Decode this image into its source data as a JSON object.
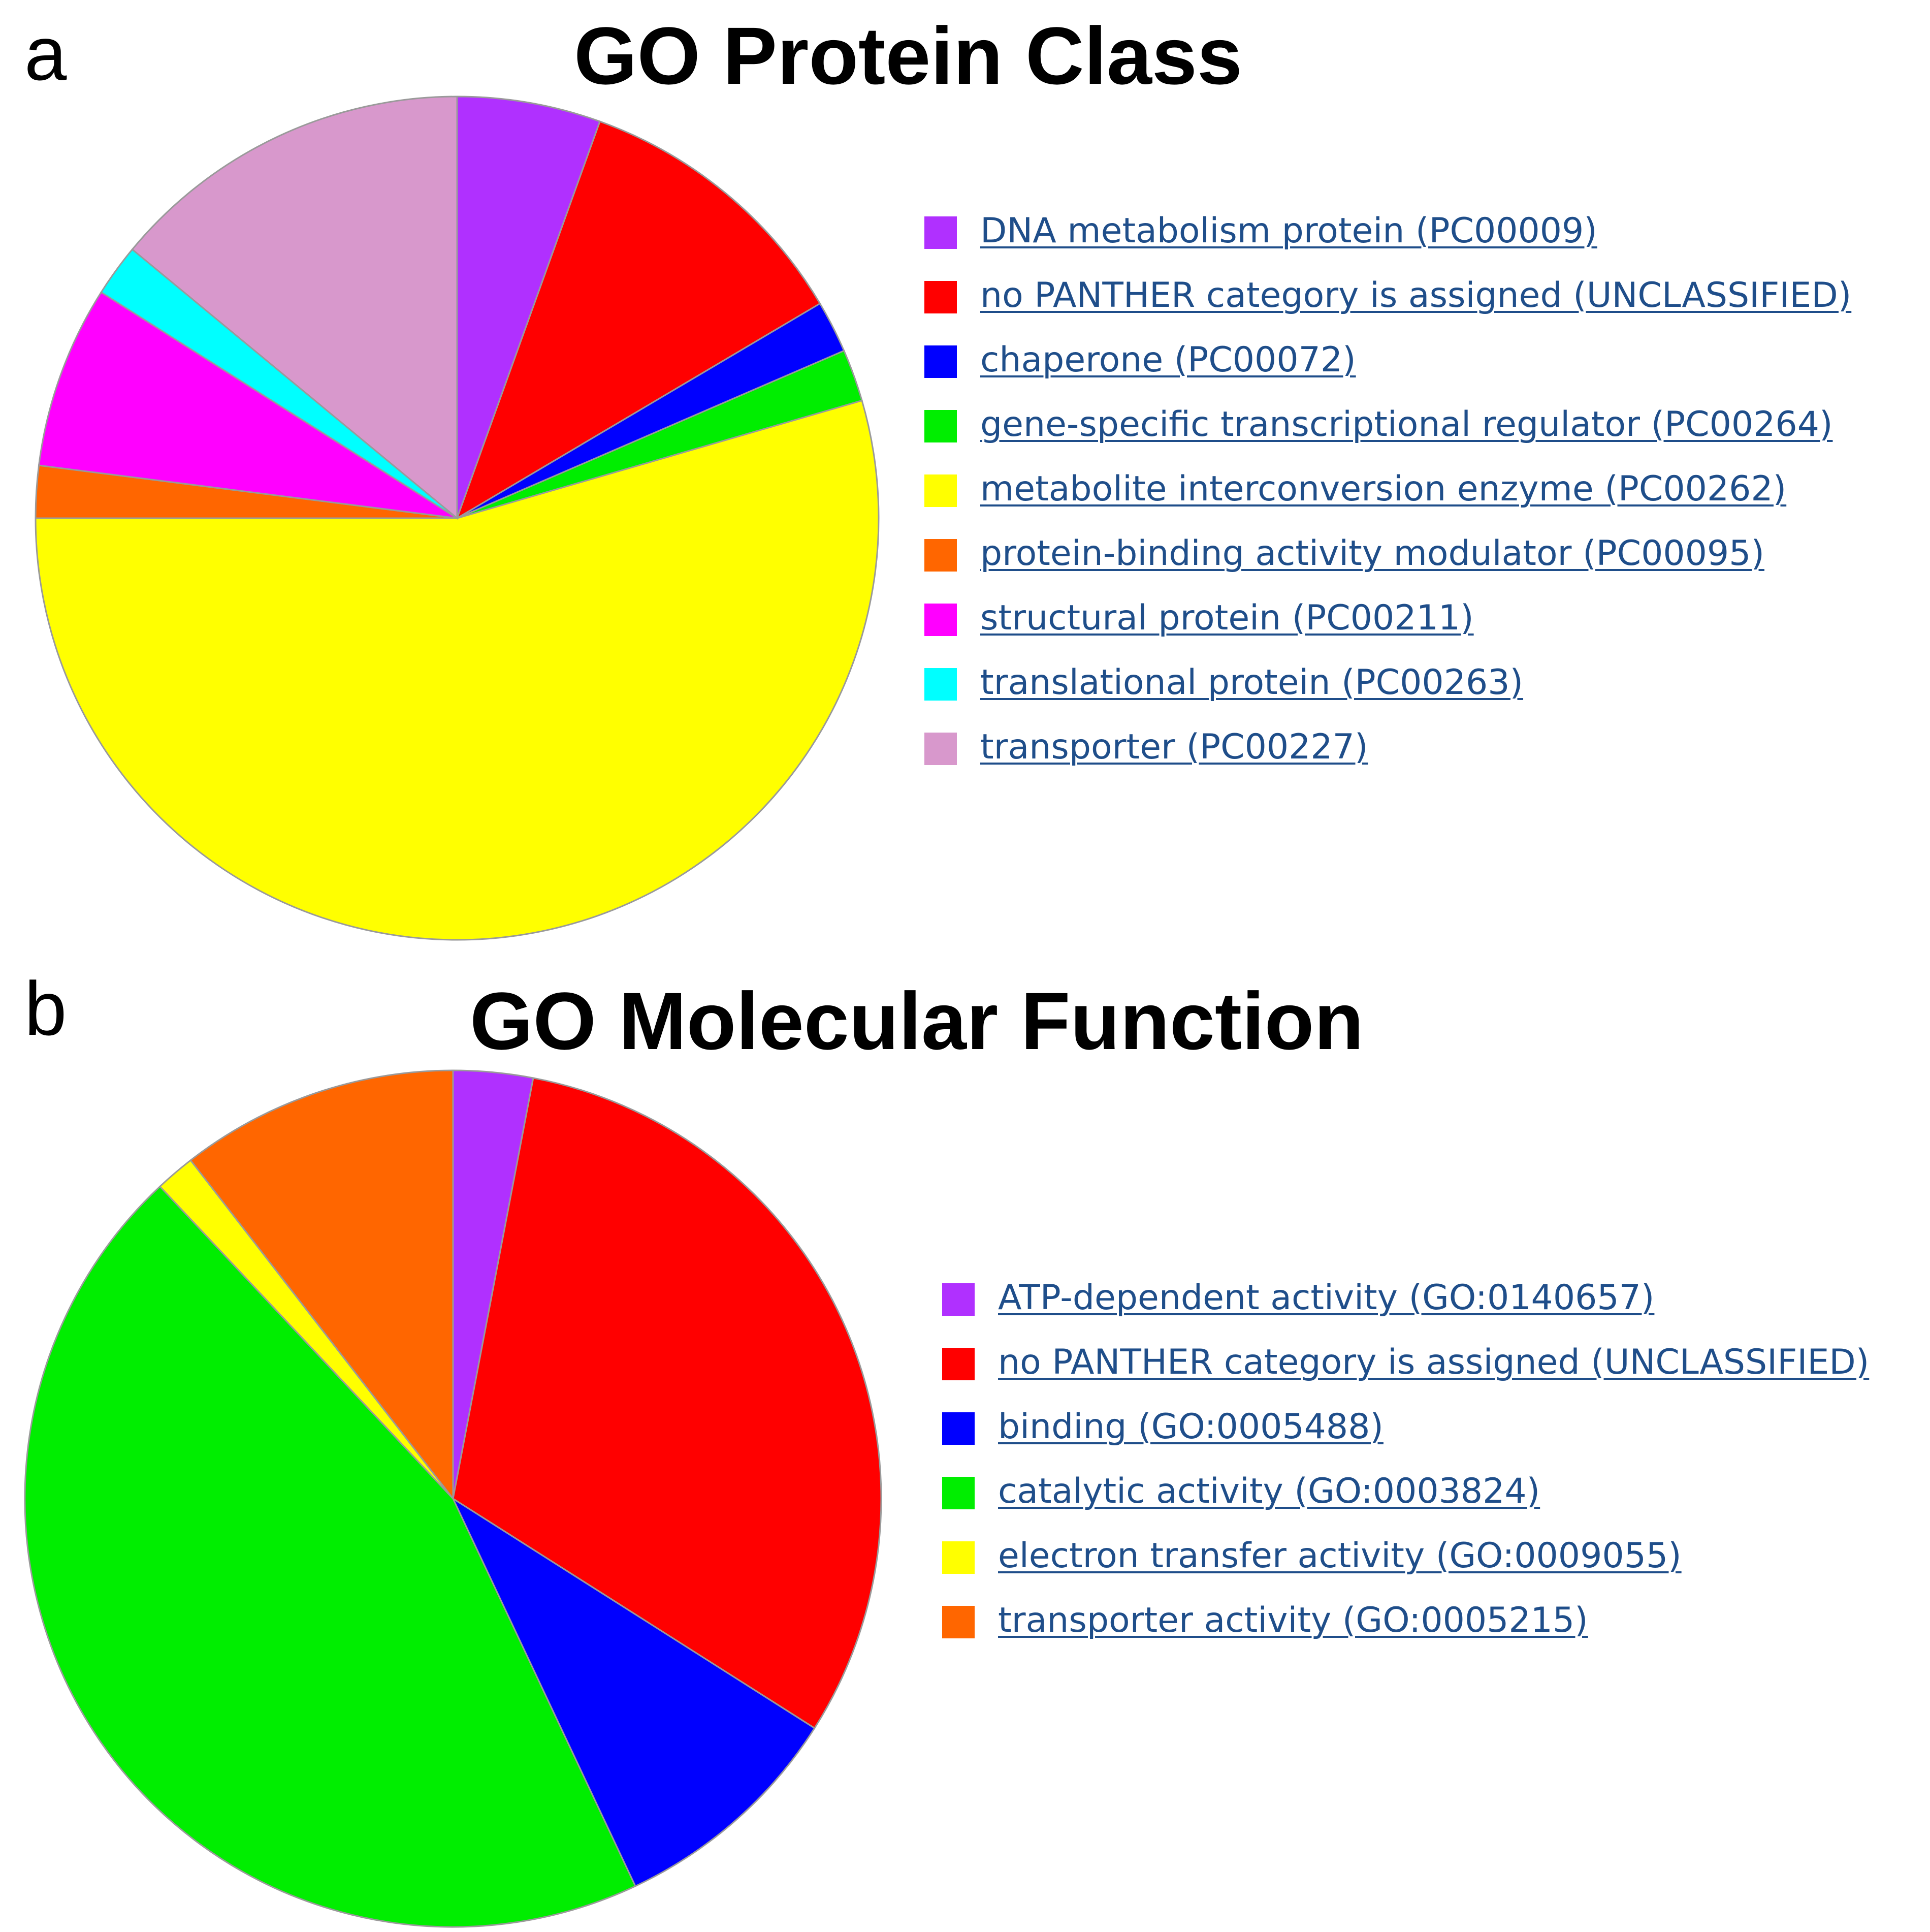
{
  "chart_data": [
    {
      "type": "pie",
      "panel": "a",
      "title": "GO Protein Class",
      "legend_position": "right",
      "series": [
        {
          "name": "DNA metabolism protein (PC00009)",
          "value": 5.5,
          "color": "#b030ff"
        },
        {
          "name": "no PANTHER category is assigned (UNCLASSIFIED)",
          "value": 11.0,
          "color": "#ff0000"
        },
        {
          "name": "chaperone (PC00072)",
          "value": 2.0,
          "color": "#0000ff"
        },
        {
          "name": "gene-specific transcriptional regulator (PC00264)",
          "value": 2.0,
          "color": "#00ee00"
        },
        {
          "name": "metabolite interconversion enzyme (PC00262)",
          "value": 54.5,
          "color": "#ffff00"
        },
        {
          "name": "protein-binding activity modulator (PC00095)",
          "value": 2.0,
          "color": "#ff6600"
        },
        {
          "name": "structural protein (PC00211)",
          "value": 7.0,
          "color": "#ff00ff"
        },
        {
          "name": "translational protein (PC00263)",
          "value": 2.0,
          "color": "#00ffff"
        },
        {
          "name": "transporter (PC00227)",
          "value": 14.0,
          "color": "#d898cc"
        }
      ]
    },
    {
      "type": "pie",
      "panel": "b",
      "title": "GO Molecular Function",
      "legend_position": "right",
      "series": [
        {
          "name": "ATP-dependent activity (GO:0140657)",
          "value": 3.0,
          "color": "#b030ff"
        },
        {
          "name": "no PANTHER category is assigned (UNCLASSIFIED)",
          "value": 31.0,
          "color": "#ff0000"
        },
        {
          "name": "binding (GO:0005488)",
          "value": 9.0,
          "color": "#0000ff"
        },
        {
          "name": "catalytic activity (GO:0003824)",
          "value": 45.0,
          "color": "#00ee00"
        },
        {
          "name": "electron transfer activity (GO:0009055)",
          "value": 1.5,
          "color": "#ffff00"
        },
        {
          "name": "transporter activity (GO:0005215)",
          "value": 10.5,
          "color": "#ff6600"
        }
      ]
    }
  ]
}
